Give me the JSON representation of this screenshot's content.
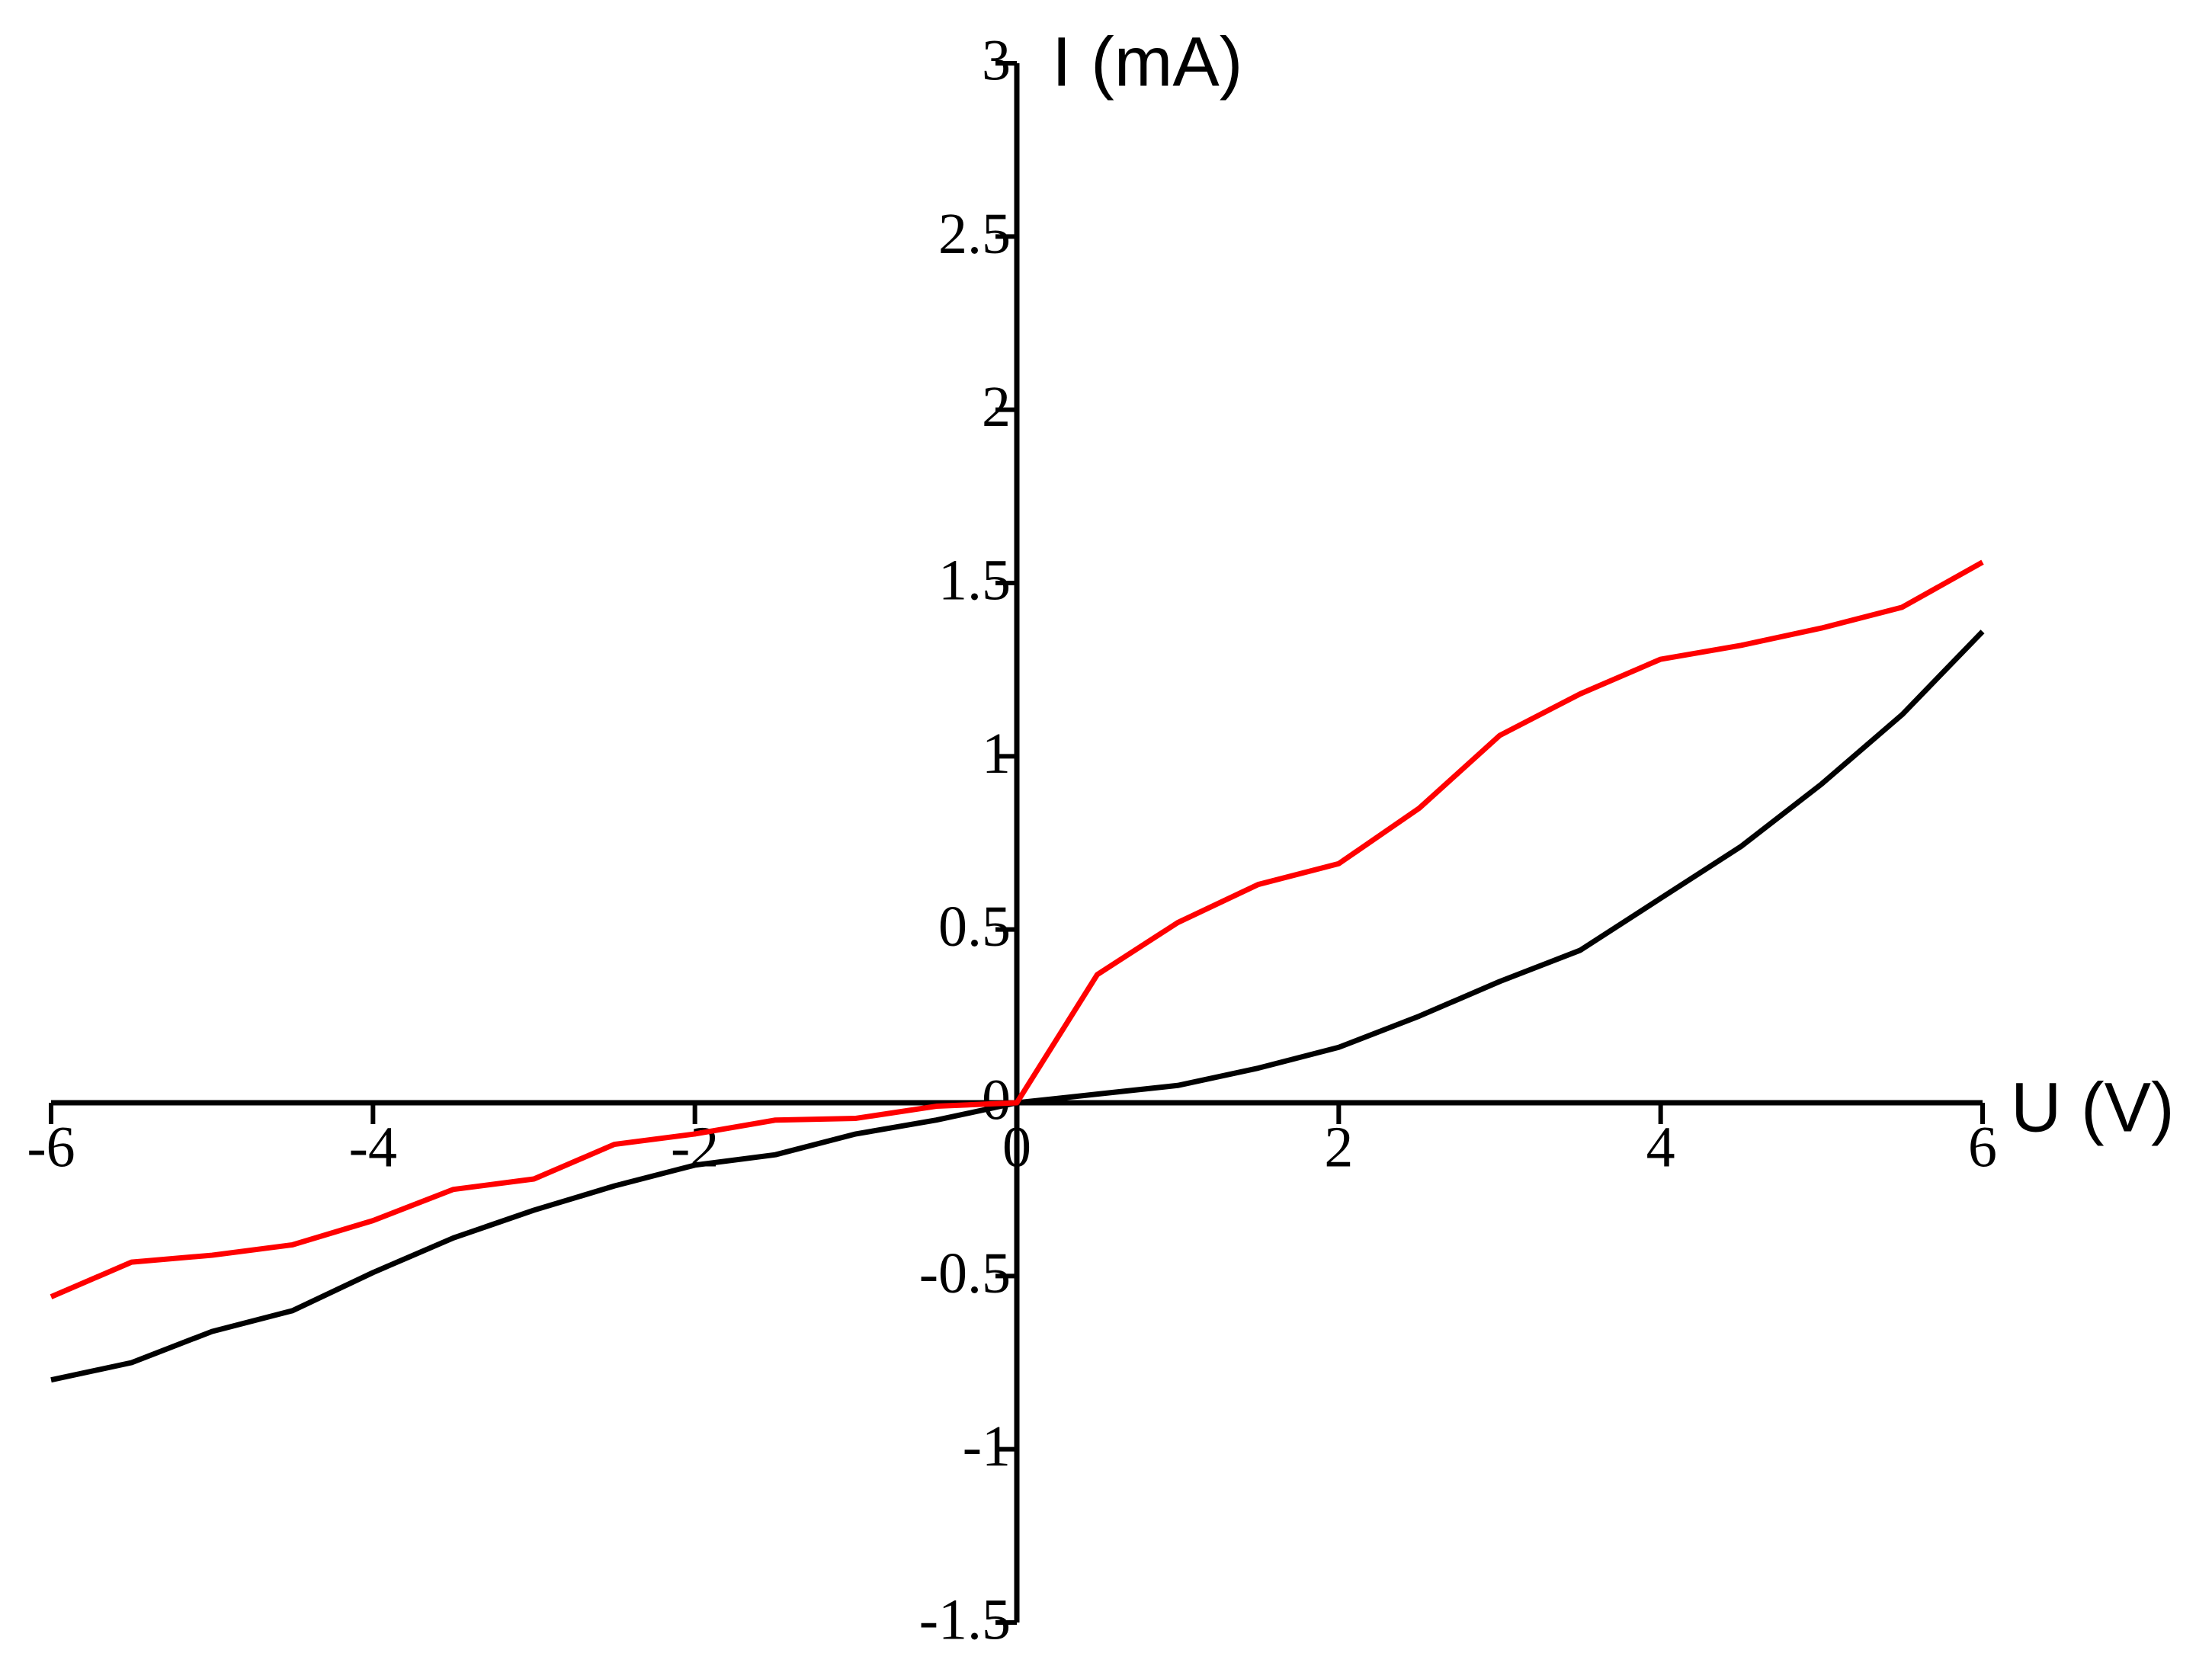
{
  "chart_data": {
    "type": "line",
    "x_label": "U (V)",
    "y_label": "I (mA)",
    "x": [
      -6,
      -5.5,
      -5,
      -4.5,
      -4,
      -3.5,
      -3,
      -2.5,
      -2,
      -1.5,
      -1,
      -0.5,
      0,
      0.5,
      1,
      1.5,
      2,
      2.5,
      3,
      3.5,
      4,
      4.5,
      5,
      5.5,
      6
    ],
    "series": [
      {
        "color": "#ff0000",
        "values": [
          -0.56,
          -0.46,
          -0.44,
          -0.41,
          -0.34,
          -0.25,
          -0.22,
          -0.12,
          -0.09,
          -0.05,
          -0.045,
          -0.01,
          0,
          0.37,
          0.52,
          0.63,
          0.69,
          0.85,
          1.06,
          1.18,
          1.28,
          1.32,
          1.37,
          1.43,
          1.56
        ]
      },
      {
        "color": "#000000",
        "values": [
          -0.8,
          -0.75,
          -0.66,
          -0.6,
          -0.49,
          -0.39,
          -0.31,
          -0.24,
          -0.18,
          -0.15,
          -0.09,
          -0.05,
          0,
          0.025,
          0.05,
          0.1,
          0.16,
          0.25,
          0.35,
          0.44,
          0.59,
          0.74,
          0.92,
          1.12,
          1.36
        ]
      }
    ],
    "xlim": [
      -6,
      6
    ],
    "ylim": [
      -1.5,
      3
    ],
    "xticks": [
      -6,
      -4,
      -2,
      0,
      2,
      4,
      6
    ],
    "yticks": [
      -1.5,
      -1,
      -0.5,
      0,
      0.5,
      1,
      1.5,
      2,
      2.5,
      3
    ]
  }
}
